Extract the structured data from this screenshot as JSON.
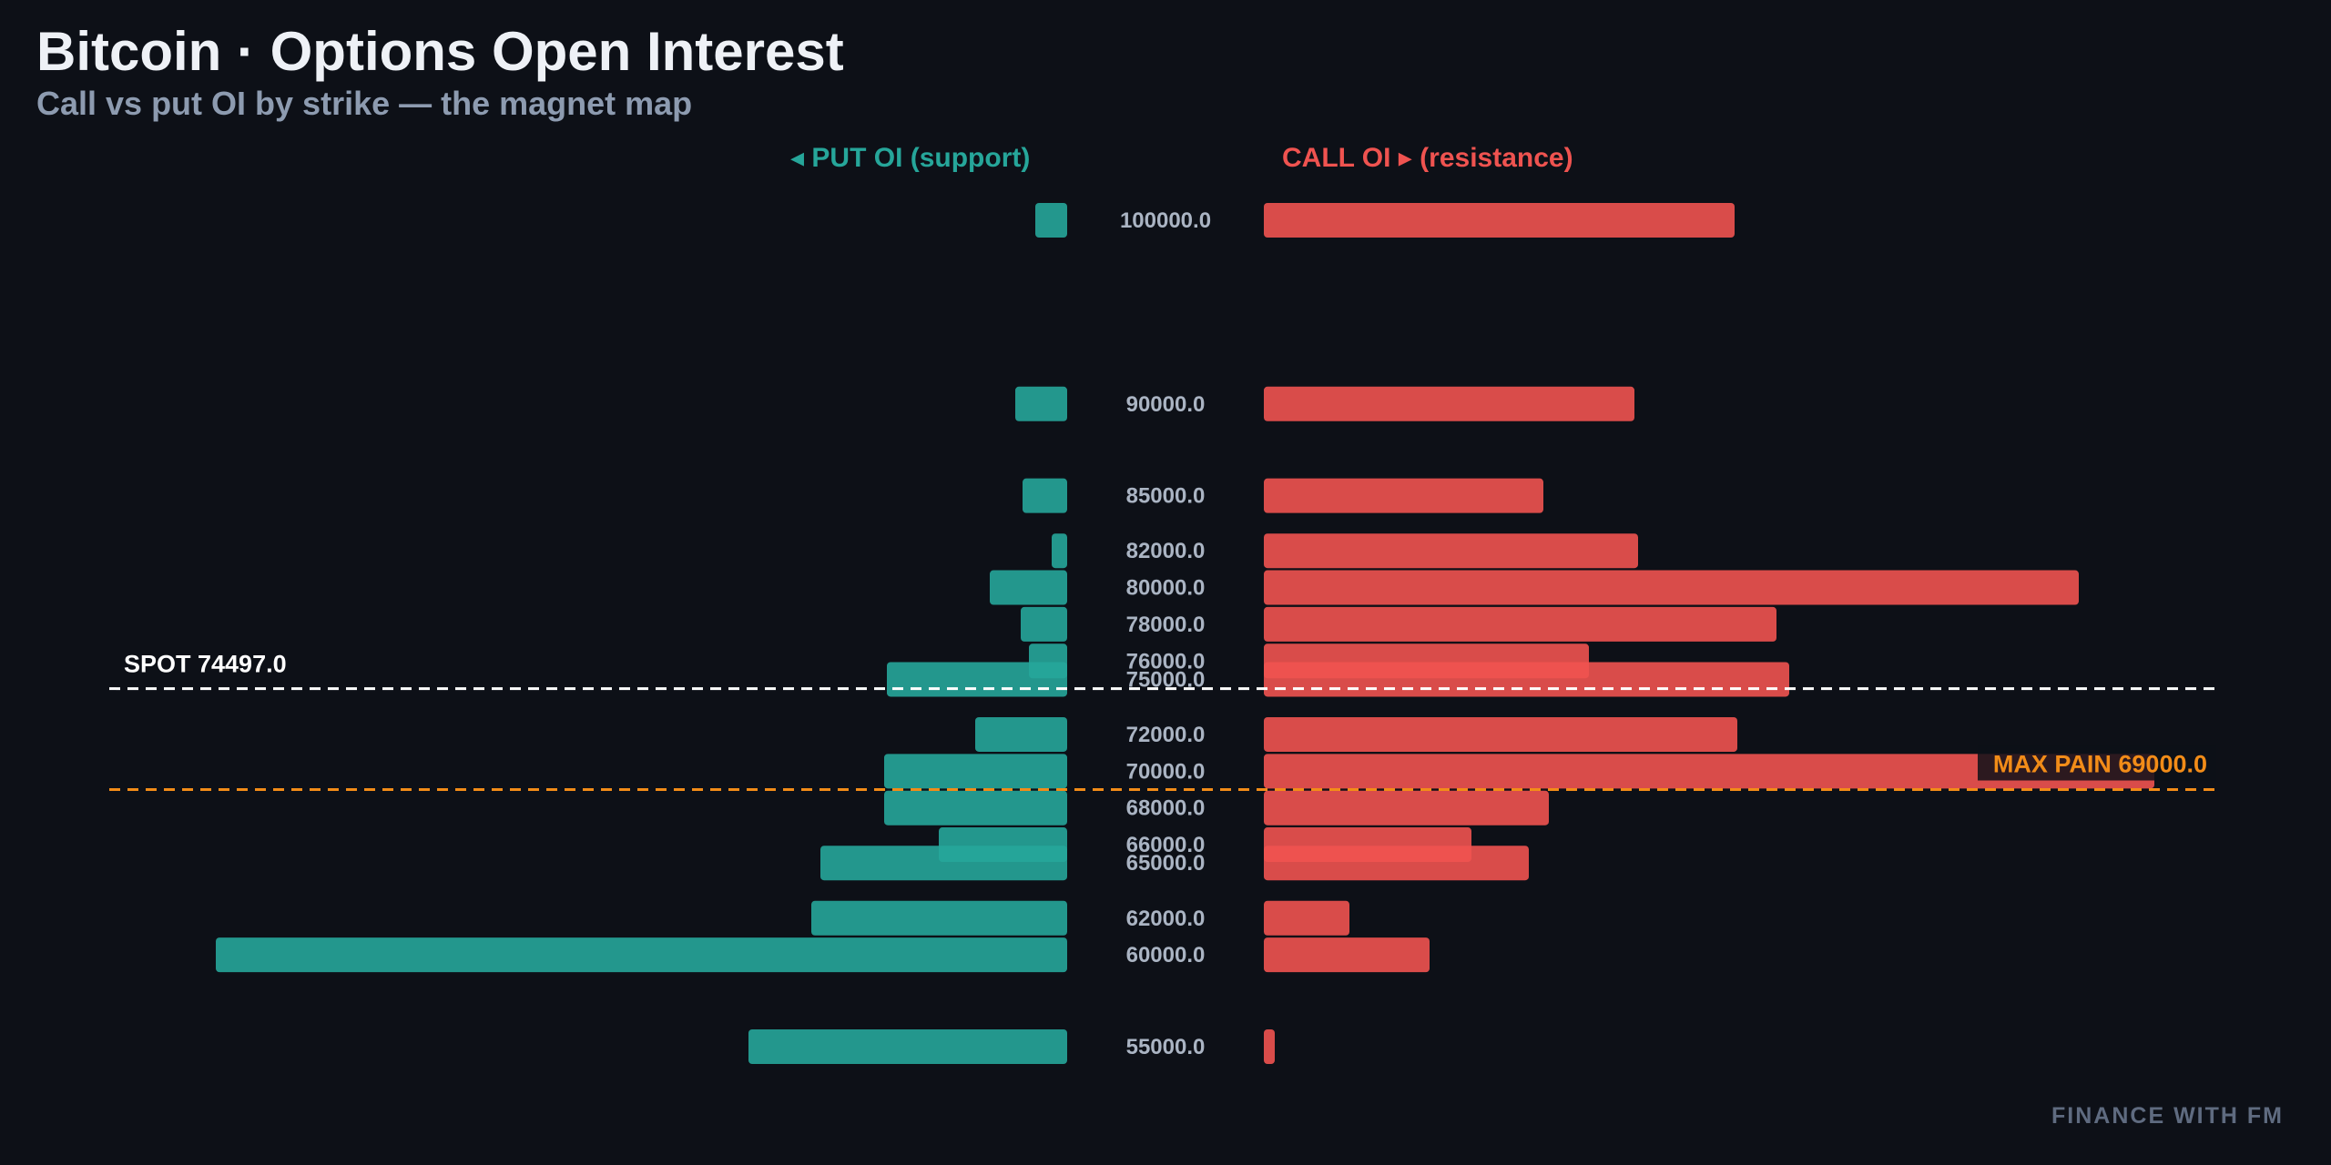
{
  "chart_data": {
    "type": "bar",
    "title": "Bitcoin · Options Open Interest",
    "subtitle": "Call vs put OI by strike — the magnet map",
    "put_label": "◂ PUT OI (support)",
    "call_label": "CALL OI ▸ (resistance)",
    "strikes": [
      100000,
      90000,
      85000,
      82000,
      80000,
      78000,
      76000,
      75000,
      72000,
      70000,
      68000,
      66000,
      65000,
      62000,
      60000,
      55000
    ],
    "strike_labels": [
      "100000.0",
      "90000.0",
      "85000.0",
      "82000.0",
      "80000.0",
      "78000.0",
      "76000.0",
      "75000.0",
      "72000.0",
      "70000.0",
      "68000.0",
      "66000.0",
      "65000.0",
      "62000.0",
      "60000.0",
      "55000.0"
    ],
    "series": [
      {
        "name": "PUT OI (support)",
        "values": [
          35,
          57,
          49,
          17,
          85,
          51,
          42,
          198,
          101,
          201,
          201,
          141,
          271,
          281,
          935,
          350
        ]
      },
      {
        "name": "CALL OI (resistance)",
        "values": [
          517,
          407,
          307,
          411,
          895,
          563,
          357,
          577,
          520,
          978,
          313,
          228,
          291,
          94,
          182,
          12
        ]
      }
    ],
    "spot": {
      "value": 74497.0,
      "label": "SPOT 74497.0"
    },
    "max_pain": {
      "value": 69000.0,
      "label": "MAX PAIN 69000.0"
    },
    "colors": {
      "put": "#26a69a",
      "call": "#ef5350",
      "spot_line": "#ffffff",
      "max_pain": "#f28c18",
      "strike_text": "#aab4c3"
    }
  },
  "footer": "FINANCE WITH FM"
}
